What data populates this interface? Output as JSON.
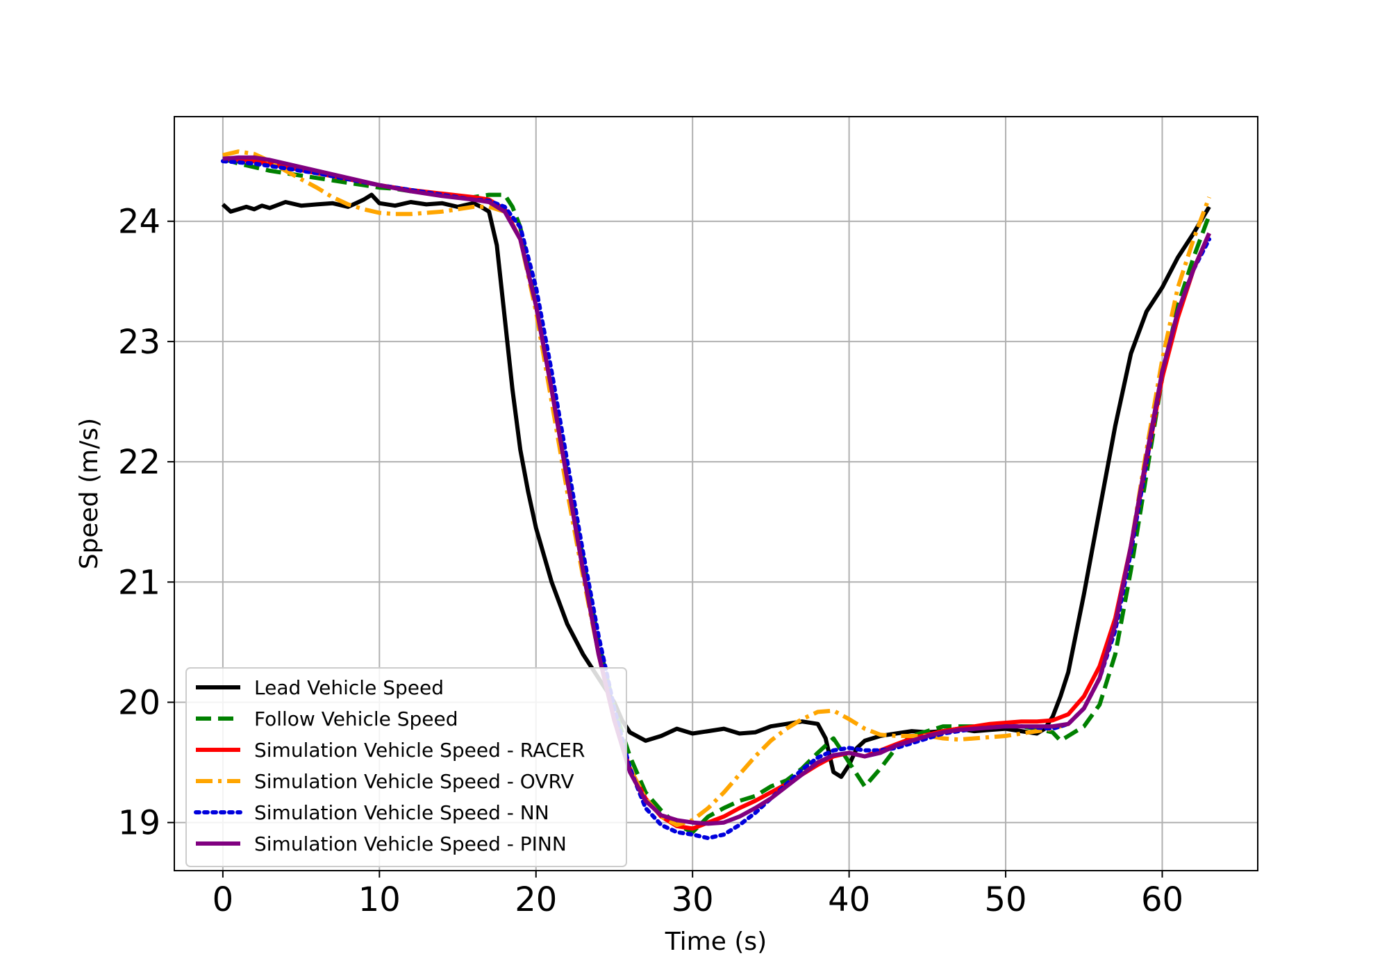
{
  "chart_data": {
    "type": "line",
    "title": "",
    "xlabel": "Time (s)",
    "ylabel": "Speed (m/s)",
    "xlim": [
      -3.1,
      66.1
    ],
    "ylim": [
      18.6,
      24.87
    ],
    "xticks": [
      0,
      10,
      20,
      30,
      40,
      50,
      60
    ],
    "yticks": [
      19,
      20,
      21,
      22,
      23,
      24
    ],
    "grid": true,
    "legend_position": "lower-left",
    "series": [
      {
        "name": "Lead Vehicle Speed",
        "color": "#000000",
        "dash": "solid",
        "x": [
          0,
          0.5,
          1,
          1.5,
          2,
          2.5,
          3,
          4,
          5,
          6,
          7,
          8,
          9,
          9.5,
          10,
          11,
          12,
          13,
          14,
          15,
          16,
          16.5,
          17,
          17.5,
          18,
          18.5,
          19,
          19.5,
          20,
          21,
          22,
          23,
          24,
          25,
          25.5,
          26,
          27,
          28,
          29,
          30,
          31,
          32,
          33,
          34,
          35,
          36,
          37,
          38,
          38.5,
          39,
          39.5,
          40,
          40.5,
          41,
          42,
          43,
          44,
          45,
          46,
          47,
          48,
          49,
          50,
          51,
          52,
          52.5,
          53,
          53.5,
          54,
          55,
          56,
          57,
          58,
          59,
          60,
          61,
          62,
          63
        ],
        "y": [
          24.14,
          24.08,
          24.1,
          24.12,
          24.1,
          24.13,
          24.11,
          24.16,
          24.13,
          24.14,
          24.15,
          24.12,
          24.18,
          24.22,
          24.15,
          24.13,
          24.16,
          24.14,
          24.15,
          24.12,
          24.15,
          24.12,
          24.08,
          23.8,
          23.2,
          22.6,
          22.1,
          21.75,
          21.45,
          21.0,
          20.65,
          20.4,
          20.2,
          20.0,
          19.85,
          19.75,
          19.68,
          19.72,
          19.78,
          19.74,
          19.76,
          19.78,
          19.74,
          19.75,
          19.8,
          19.82,
          19.84,
          19.82,
          19.7,
          19.42,
          19.38,
          19.48,
          19.62,
          19.68,
          19.72,
          19.74,
          19.76,
          19.75,
          19.76,
          19.78,
          19.76,
          19.77,
          19.78,
          19.76,
          19.74,
          19.78,
          19.88,
          20.05,
          20.25,
          20.9,
          21.6,
          22.3,
          22.9,
          23.25,
          23.45,
          23.7,
          23.9,
          24.12
        ]
      },
      {
        "name": "Follow Vehicle Speed",
        "color": "#008000",
        "dash": "dashed",
        "x": [
          0,
          1,
          2,
          3,
          4,
          5,
          6,
          7,
          8,
          9,
          10,
          11,
          12,
          13,
          14,
          15,
          16,
          17,
          18,
          18.5,
          19,
          20,
          21,
          22,
          23,
          24,
          25,
          26,
          27,
          28,
          29,
          30,
          31,
          32,
          33,
          34,
          35,
          36,
          37,
          38,
          39,
          40,
          41,
          42,
          43,
          44,
          45,
          46,
          47,
          48,
          49,
          50,
          51,
          52,
          53,
          53.5,
          54,
          55,
          56,
          57,
          58,
          59,
          60,
          61,
          62,
          63
        ],
        "y": [
          24.52,
          24.48,
          24.45,
          24.42,
          24.4,
          24.38,
          24.36,
          24.34,
          24.32,
          24.3,
          24.28,
          24.27,
          24.25,
          24.24,
          24.22,
          24.2,
          24.2,
          24.22,
          24.22,
          24.12,
          23.95,
          23.3,
          22.6,
          21.9,
          21.2,
          20.5,
          19.95,
          19.55,
          19.25,
          19.1,
          18.98,
          18.92,
          19.05,
          19.12,
          19.18,
          19.22,
          19.3,
          19.35,
          19.45,
          19.58,
          19.7,
          19.5,
          19.3,
          19.45,
          19.62,
          19.72,
          19.76,
          19.8,
          19.8,
          19.8,
          19.79,
          19.8,
          19.8,
          19.78,
          19.75,
          19.68,
          19.72,
          19.8,
          19.98,
          20.4,
          21.1,
          21.9,
          22.7,
          23.3,
          23.7,
          24.05
        ]
      },
      {
        "name": "Simulation Vehicle Speed - RACER",
        "color": "#ff0000",
        "dash": "solid",
        "x": [
          0,
          2,
          4,
          6,
          8,
          10,
          12,
          14,
          16,
          17,
          18,
          19,
          20,
          21,
          22,
          23,
          24,
          25,
          26,
          27,
          28,
          29,
          30,
          31,
          32,
          33,
          34,
          35,
          36,
          37,
          38,
          39,
          40,
          41,
          42,
          43,
          44,
          45,
          46,
          47,
          48,
          49,
          50,
          51,
          52,
          53,
          54,
          55,
          56,
          57,
          58,
          59,
          60,
          61,
          62,
          63
        ],
        "y": [
          24.52,
          24.5,
          24.45,
          24.4,
          24.35,
          24.3,
          24.26,
          24.23,
          24.2,
          24.18,
          24.1,
          23.85,
          23.3,
          22.6,
          21.85,
          21.1,
          20.4,
          19.85,
          19.45,
          19.2,
          19.05,
          18.97,
          18.95,
          19.0,
          19.05,
          19.12,
          19.18,
          19.25,
          19.32,
          19.4,
          19.48,
          19.55,
          19.58,
          19.55,
          19.6,
          19.65,
          19.7,
          19.73,
          19.76,
          19.78,
          19.8,
          19.82,
          19.83,
          19.84,
          19.84,
          19.85,
          19.9,
          20.05,
          20.3,
          20.7,
          21.3,
          22.0,
          22.7,
          23.2,
          23.6,
          23.9
        ]
      },
      {
        "name": "Simulation Vehicle Speed - OVRV",
        "color": "#ffa500",
        "dash": "dashdot",
        "x": [
          0,
          1,
          2,
          3,
          4,
          5,
          6,
          7,
          8,
          9,
          10,
          11,
          12,
          13,
          14,
          15,
          16,
          17,
          18,
          19,
          20,
          21,
          22,
          23,
          24,
          25,
          26,
          27,
          28,
          29,
          30,
          31,
          32,
          33,
          34,
          35,
          36,
          37,
          38,
          39,
          40,
          41,
          42,
          43,
          44,
          45,
          46,
          47,
          48,
          49,
          50,
          51,
          52,
          53,
          54,
          55,
          56,
          57,
          58,
          59,
          60,
          61,
          62,
          63
        ],
        "y": [
          24.55,
          24.58,
          24.56,
          24.5,
          24.42,
          24.35,
          24.28,
          24.2,
          24.14,
          24.1,
          24.07,
          24.06,
          24.06,
          24.07,
          24.08,
          24.1,
          24.12,
          24.12,
          24.08,
          23.85,
          23.25,
          22.5,
          21.75,
          21.05,
          20.4,
          19.85,
          19.45,
          19.2,
          19.05,
          18.98,
          19.02,
          19.12,
          19.25,
          19.4,
          19.55,
          19.68,
          19.78,
          19.86,
          19.92,
          19.93,
          19.86,
          19.78,
          19.73,
          19.72,
          19.72,
          19.72,
          19.7,
          19.69,
          19.7,
          19.71,
          19.72,
          19.74,
          19.76,
          19.78,
          19.82,
          19.95,
          20.2,
          20.65,
          21.3,
          22.1,
          22.85,
          23.45,
          23.85,
          24.2
        ]
      },
      {
        "name": "Simulation Vehicle Speed - NN",
        "color": "#0000dd",
        "dash": "dotted",
        "x": [
          0,
          2,
          4,
          6,
          8,
          10,
          12,
          14,
          16,
          17,
          18,
          19,
          20,
          21,
          22,
          23,
          24,
          25,
          26,
          27,
          28,
          29,
          30,
          31,
          32,
          33,
          34,
          35,
          36,
          37,
          38,
          39,
          40,
          41,
          42,
          43,
          44,
          45,
          46,
          47,
          48,
          49,
          50,
          51,
          52,
          53,
          54,
          55,
          56,
          57,
          58,
          59,
          60,
          61,
          62,
          63
        ],
        "y": [
          24.5,
          24.48,
          24.44,
          24.4,
          24.35,
          24.3,
          24.26,
          24.22,
          24.18,
          24.17,
          24.12,
          23.95,
          23.45,
          22.75,
          22.0,
          21.25,
          20.55,
          19.95,
          19.45,
          19.12,
          18.98,
          18.92,
          18.9,
          18.87,
          18.9,
          18.98,
          19.08,
          19.2,
          19.32,
          19.44,
          19.54,
          19.6,
          19.62,
          19.6,
          19.6,
          19.62,
          19.66,
          19.7,
          19.74,
          19.76,
          19.78,
          19.79,
          19.8,
          19.8,
          19.79,
          19.78,
          19.82,
          19.95,
          20.2,
          20.6,
          21.25,
          22.0,
          22.75,
          23.25,
          23.6,
          23.85
        ]
      },
      {
        "name": "Simulation Vehicle Speed - PINN",
        "color": "#800080",
        "dash": "solid",
        "x": [
          0,
          1,
          2,
          3,
          4,
          6,
          8,
          10,
          12,
          14,
          16,
          17,
          18,
          19,
          20,
          21,
          22,
          23,
          24,
          25,
          26,
          27,
          28,
          29,
          30,
          31,
          32,
          33,
          34,
          35,
          36,
          37,
          38,
          39,
          40,
          41,
          42,
          43,
          44,
          45,
          46,
          47,
          48,
          49,
          50,
          51,
          52,
          53,
          54,
          55,
          56,
          57,
          58,
          59,
          60,
          61,
          62,
          63
        ],
        "y": [
          24.52,
          24.53,
          24.53,
          24.51,
          24.48,
          24.42,
          24.36,
          24.3,
          24.25,
          24.21,
          24.18,
          24.16,
          24.08,
          23.85,
          23.3,
          22.6,
          21.85,
          21.1,
          20.4,
          19.85,
          19.42,
          19.18,
          19.06,
          19.02,
          19.0,
          18.99,
          19.0,
          19.05,
          19.12,
          19.2,
          19.3,
          19.4,
          19.5,
          19.56,
          19.58,
          19.55,
          19.58,
          19.64,
          19.68,
          19.72,
          19.75,
          19.77,
          19.78,
          19.79,
          19.8,
          19.8,
          19.8,
          19.8,
          19.82,
          19.95,
          20.2,
          20.65,
          21.3,
          22.05,
          22.75,
          23.25,
          23.6,
          23.9
        ]
      }
    ]
  }
}
